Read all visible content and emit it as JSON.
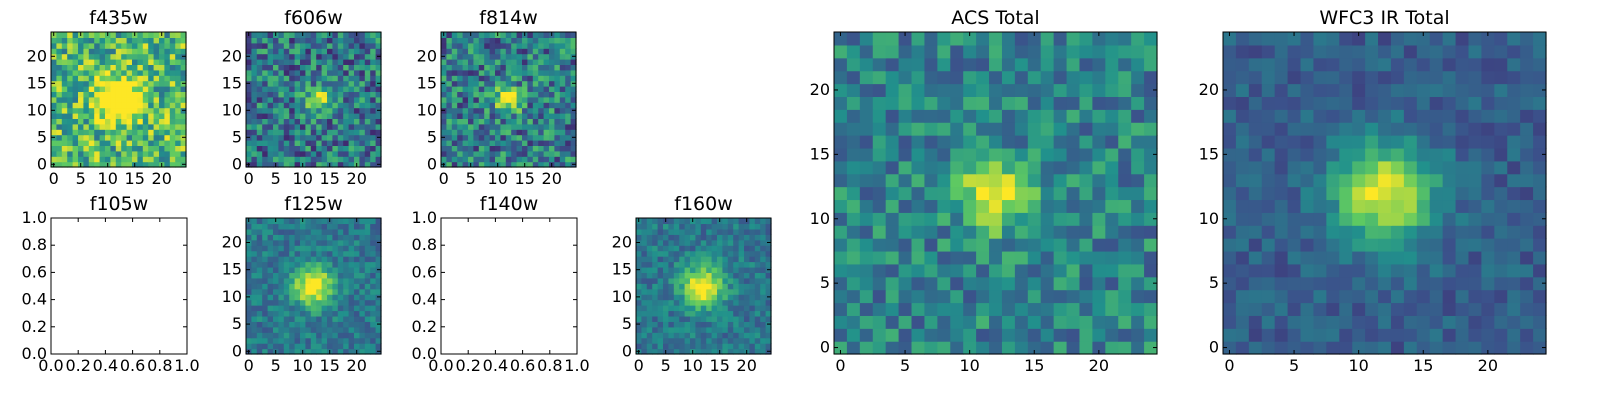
{
  "colormap": [
    "#440154",
    "#3b528b",
    "#21918c",
    "#5ec962",
    "#fde725"
  ],
  "chart_data": [
    {
      "type": "heatmap",
      "title": "f435w",
      "kind": "image",
      "size": 25,
      "source": {
        "a": 1.0,
        "c": 12,
        "r": 12,
        "s": 2.5
      },
      "background": 0.68,
      "noise": 0.3,
      "seed": 11,
      "xticks": [
        "0",
        "5",
        "10",
        "15",
        "20"
      ],
      "yticks": [
        "0",
        "5",
        "10",
        "15",
        "20"
      ],
      "xlim": [
        -0.5,
        24.5
      ],
      "ylim": [
        -0.5,
        24.5
      ]
    },
    {
      "type": "heatmap",
      "title": "f606w",
      "kind": "image",
      "size": 25,
      "source": {
        "a": 0.6,
        "c": 13,
        "r": 12,
        "s": 1.6
      },
      "background": 0.4,
      "noise": 0.28,
      "seed": 23,
      "xticks": [
        "0",
        "5",
        "10",
        "15",
        "20"
      ],
      "yticks": [
        "0",
        "5",
        "10",
        "15",
        "20"
      ],
      "xlim": [
        -0.5,
        24.5
      ],
      "ylim": [
        -0.5,
        24.5
      ]
    },
    {
      "type": "heatmap",
      "title": "f814w",
      "kind": "image",
      "size": 25,
      "source": {
        "a": 0.6,
        "c": 12,
        "r": 12,
        "s": 1.7
      },
      "background": 0.42,
      "noise": 0.28,
      "seed": 37,
      "xticks": [
        "0",
        "5",
        "10",
        "15",
        "20"
      ],
      "yticks": [
        "0",
        "5",
        "10",
        "15",
        "20"
      ],
      "xlim": [
        -0.5,
        24.5
      ],
      "ylim": [
        -0.5,
        24.5
      ]
    },
    {
      "type": "heatmap",
      "title": "f105w",
      "kind": "empty",
      "xticks": [
        "0.0",
        "0.2",
        "0.4",
        "0.6",
        "0.8",
        "1.0"
      ],
      "yticks": [
        "0.0",
        "0.2",
        "0.4",
        "0.6",
        "0.8",
        "1.0"
      ],
      "xlim": [
        0,
        1
      ],
      "ylim": [
        0,
        1
      ]
    },
    {
      "type": "heatmap",
      "title": "f125w",
      "kind": "image",
      "size": 25,
      "source": {
        "a": 0.65,
        "c": 12,
        "r": 12,
        "s": 2.6
      },
      "background": 0.4,
      "noise": 0.14,
      "seed": 53,
      "xticks": [
        "0",
        "5",
        "10",
        "15",
        "20"
      ],
      "yticks": [
        "0",
        "5",
        "10",
        "15",
        "20"
      ],
      "xlim": [
        -0.5,
        24.5
      ],
      "ylim": [
        -0.5,
        24.5
      ]
    },
    {
      "type": "heatmap",
      "title": "f140w",
      "kind": "empty",
      "xticks": [
        "0.0",
        "0.2",
        "0.4",
        "0.6",
        "0.8",
        "1.0"
      ],
      "yticks": [
        "0.0",
        "0.2",
        "0.4",
        "0.6",
        "0.8",
        "1.0"
      ],
      "xlim": [
        0,
        1
      ],
      "ylim": [
        0,
        1
      ]
    },
    {
      "type": "heatmap",
      "title": "f160w",
      "kind": "image",
      "size": 25,
      "source": {
        "a": 0.65,
        "c": 12,
        "r": 12,
        "s": 2.6
      },
      "background": 0.4,
      "noise": 0.14,
      "seed": 71,
      "xticks": [
        "0",
        "5",
        "10",
        "15",
        "20"
      ],
      "yticks": [
        "0",
        "5",
        "10",
        "15",
        "20"
      ],
      "xlim": [
        -0.5,
        24.5
      ],
      "ylim": [
        -0.5,
        24.5
      ]
    },
    {
      "type": "heatmap",
      "title": "ACS Total",
      "kind": "image",
      "size": 25,
      "source": {
        "a": 0.6,
        "c": 12,
        "r": 12,
        "s": 1.9
      },
      "background": 0.45,
      "noise": 0.2,
      "seed": 89,
      "xticks": [
        "0",
        "5",
        "10",
        "15",
        "20"
      ],
      "yticks": [
        "0",
        "5",
        "10",
        "15",
        "20"
      ],
      "xlim": [
        -0.5,
        24.5
      ],
      "ylim": [
        -0.5,
        24.5
      ]
    },
    {
      "type": "heatmap",
      "title": "WFC3 IR Total",
      "kind": "image",
      "size": 25,
      "source": {
        "a": 0.68,
        "c": 12,
        "r": 12,
        "s": 2.7
      },
      "background": 0.3,
      "noise": 0.1,
      "seed": 97,
      "xticks": [
        "0",
        "5",
        "10",
        "15",
        "20"
      ],
      "yticks": [
        "0",
        "5",
        "10",
        "15",
        "20"
      ],
      "xlim": [
        -0.5,
        24.5
      ],
      "ylim": [
        -0.5,
        24.5
      ]
    }
  ]
}
